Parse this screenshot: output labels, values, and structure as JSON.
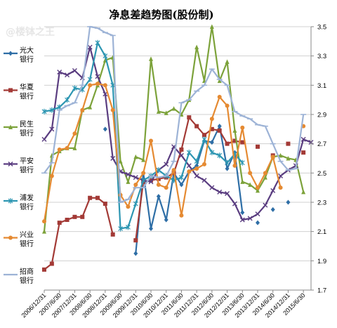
{
  "chart_data": {
    "type": "line",
    "title": "净息差趋势图(股份制)",
    "watermark": "@楼钵之王",
    "ylim": [
      1.7,
      3.5
    ],
    "yticks": [
      "3.5",
      "3.3",
      "3.1",
      "2.9",
      "2.7",
      "2.5",
      "2.3",
      "2.1",
      "1.9",
      "1.7"
    ],
    "grid": "horizontal",
    "legend_position": "left",
    "x": [
      "2006/12/31",
      "2007/3/31",
      "2007/6/30",
      "2007/9/30",
      "2007/12/31",
      "2008/3/31",
      "2008/6/30",
      "2008/9/30",
      "2008/12/31",
      "2009/3/31",
      "2009/6/30",
      "2009/9/30",
      "2009/12/31",
      "2010/3/31",
      "2010/6/30",
      "2010/9/30",
      "2010/12/31",
      "2011/3/31",
      "2011/6/30",
      "2011/9/30",
      "2011/12/31",
      "2012/3/31",
      "2012/6/30",
      "2012/9/30",
      "2012/12/31",
      "2013/3/31",
      "2013/6/30",
      "2013/9/30",
      "2013/12/31",
      "2014/3/31",
      "2014/6/30",
      "2014/9/30",
      "2014/12/31",
      "2015/3/31",
      "2015/6/30",
      "2015/9/30"
    ],
    "xticks": [
      "2006/12/31",
      "2007/6/30",
      "2007/12/31",
      "2008/6/30",
      "2008/12/31",
      "2009/6/30",
      "2009/12/31",
      "2010/6/30",
      "2010/12/31",
      "2011/6/30",
      "2011/12/31",
      "2012/6/30",
      "2012/12/31",
      "2013/6/30",
      "2013/12/31",
      "2014/6/30",
      "2014/12/31",
      "2015/6/30"
    ],
    "series": [
      {
        "name": "光大银行",
        "color": "#2e6ea6",
        "marker": "diamond",
        "values": [
          null,
          null,
          null,
          null,
          null,
          null,
          null,
          null,
          2.8,
          null,
          null,
          null,
          1.95,
          2.5,
          2.12,
          2.34,
          2.18,
          2.5,
          2.42,
          2.51,
          2.55,
          2.72,
          2.71,
          2.82,
          2.53,
          2.64,
          2.23,
          null,
          2.16,
          null,
          2.25,
          null,
          2.3,
          null,
          null,
          null
        ]
      },
      {
        "name": "华夏银行",
        "color": "#a33a36",
        "marker": "square",
        "values": [
          1.84,
          1.88,
          2.16,
          2.18,
          2.2,
          2.2,
          2.33,
          2.33,
          2.29,
          2.08,
          null,
          null,
          2.04,
          2.44,
          2.45,
          2.46,
          2.47,
          2.5,
          2.66,
          2.88,
          2.82,
          2.76,
          2.8,
          2.79,
          2.7,
          2.72,
          2.71,
          null,
          2.68,
          null,
          2.62,
          null,
          2.7,
          null,
          2.64,
          null
        ]
      },
      {
        "name": "民生银行",
        "color": "#7ca23a",
        "marker": "triangle",
        "values": [
          2.1,
          2.62,
          2.65,
          2.67,
          2.67,
          2.93,
          2.95,
          3.1,
          3.27,
          3.29,
          2.58,
          2.44,
          2.61,
          2.59,
          3.28,
          2.92,
          2.91,
          2.94,
          2.9,
          3.0,
          3.36,
          3.13,
          3.5,
          3.13,
          3.26,
          2.79,
          2.44,
          2.42,
          2.38,
          2.47,
          2.61,
          2.62,
          2.6,
          2.59,
          2.37,
          null
        ]
      },
      {
        "name": "平安银行",
        "color": "#5a3d80",
        "marker": "x",
        "values": [
          2.73,
          2.8,
          3.19,
          3.17,
          3.2,
          3.15,
          3.36,
          3.16,
          3.04,
          2.6,
          2.51,
          2.49,
          2.47,
          2.45,
          2.44,
          2.52,
          2.56,
          2.68,
          2.62,
          2.55,
          2.48,
          2.45,
          2.4,
          2.37,
          2.36,
          2.29,
          2.18,
          2.19,
          2.22,
          2.28,
          2.38,
          2.48,
          2.52,
          2.55,
          2.73,
          2.71
        ]
      },
      {
        "name": "浦发银行",
        "color": "#2d96b2",
        "marker": "asterisk",
        "values": [
          2.92,
          2.93,
          2.95,
          3.0,
          3.08,
          3.07,
          3.14,
          3.39,
          3.3,
          3.1,
          2.12,
          2.13,
          2.29,
          2.45,
          2.48,
          2.52,
          2.48,
          2.45,
          2.47,
          2.64,
          2.58,
          2.73,
          2.64,
          2.62,
          2.57,
          2.63,
          2.57,
          null,
          null,
          null,
          null,
          null,
          null,
          null,
          null,
          null
        ]
      },
      {
        "name": "兴业银行",
        "color": "#e58a32",
        "marker": "circle",
        "values": [
          2.17,
          2.48,
          2.66,
          2.67,
          2.77,
          2.93,
          3.1,
          3.11,
          3.1,
          2.93,
          2.35,
          2.27,
          2.42,
          2.5,
          2.72,
          2.42,
          2.4,
          2.52,
          2.21,
          2.51,
          2.53,
          2.56,
          2.87,
          3.02,
          2.96,
          2.55,
          2.81,
          2.5,
          2.4,
          2.5,
          2.61,
          2.4,
          null,
          null,
          2.82,
          null
        ]
      },
      {
        "name": "招商银行",
        "color": "#9db3d6",
        "marker": "plus",
        "values": [
          2.5,
          2.57,
          2.93,
          2.96,
          2.98,
          3.1,
          3.5,
          3.49,
          3.46,
          3.44,
          2.3,
          2.32,
          2.4,
          2.4,
          2.48,
          2.47,
          2.48,
          2.58,
          2.98,
          3.0,
          3.06,
          3.1,
          3.21,
          3.14,
          3.1,
          2.92,
          2.89,
          2.87,
          2.83,
          2.82,
          2.7,
          2.58,
          2.52,
          2.53,
          2.9,
          null
        ]
      }
    ]
  }
}
